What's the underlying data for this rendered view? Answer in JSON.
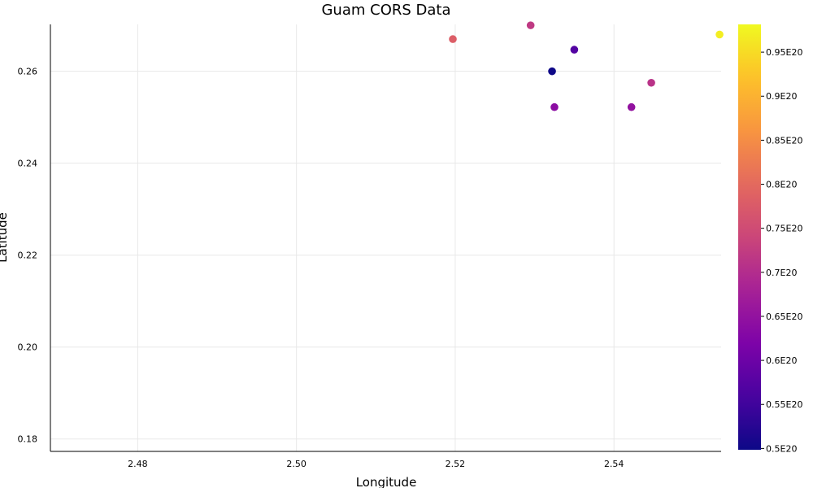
{
  "chart_data": {
    "type": "scatter",
    "title": "Guam CORS Data",
    "xlabel": "Longitude",
    "ylabel": "Latitude",
    "xlim": [
      2.469,
      2.5535
    ],
    "ylim": [
      0.1773,
      0.2702
    ],
    "xticks": [
      2.48,
      2.5,
      2.52,
      2.54
    ],
    "xtick_labels": [
      "2.48",
      "2.50",
      "2.52",
      "2.54"
    ],
    "yticks": [
      0.18,
      0.2,
      0.22,
      0.24,
      0.26
    ],
    "ytick_labels": [
      "0.18",
      "0.20",
      "0.22",
      "0.24",
      "0.26"
    ],
    "grid": true,
    "colorbar": {
      "colormap": "plasma",
      "range": [
        4.985e+19,
        9.815e+19
      ],
      "ticks": [
        5e+19,
        5.5e+19,
        6e+19,
        6.5e+19,
        7e+19,
        7.5e+19,
        8e+19,
        8.5e+19,
        9e+19,
        9.5e+19
      ],
      "tick_labels": [
        "0.5E20",
        "0.55E20",
        "0.6E20",
        "0.65E20",
        "0.7E20",
        "0.75E20",
        "0.8E20",
        "0.85E20",
        "0.9E20",
        "0.95E20"
      ]
    },
    "points": [
      {
        "x": 2.5197,
        "y": 0.267,
        "c": 7.8e+19
      },
      {
        "x": 2.5295,
        "y": 0.27,
        "c": 7.2e+19
      },
      {
        "x": 2.5322,
        "y": 0.26,
        "c": 5e+19
      },
      {
        "x": 2.535,
        "y": 0.2647,
        "c": 5.7e+19
      },
      {
        "x": 2.5325,
        "y": 0.2522,
        "c": 6.4e+19
      },
      {
        "x": 2.5422,
        "y": 0.2522,
        "c": 6.5e+19
      },
      {
        "x": 2.5447,
        "y": 0.2575,
        "c": 7.1e+19
      },
      {
        "x": 2.5533,
        "y": 0.268,
        "c": 9.7e+19
      }
    ]
  }
}
